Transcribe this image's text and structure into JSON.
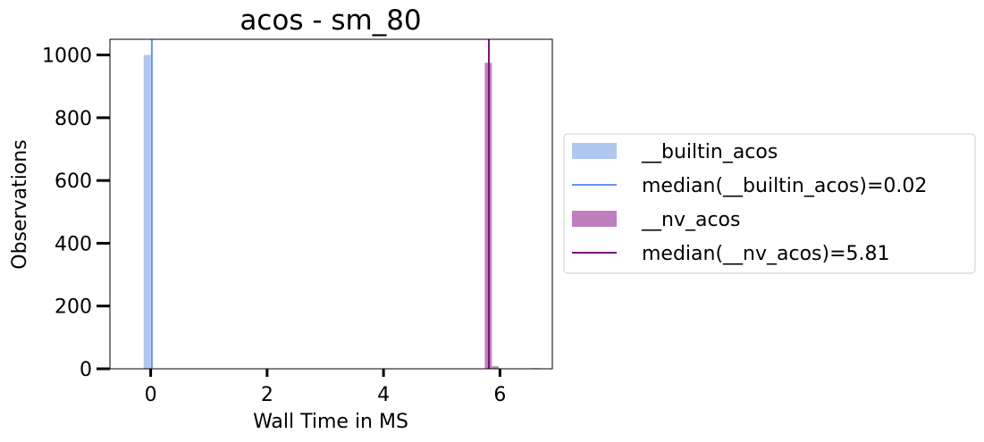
{
  "chart_data": {
    "type": "bar",
    "title": "acos - sm_80",
    "xlabel": "Wall Time in MS",
    "ylabel": "Observations",
    "xlim": [
      -0.7,
      6.9
    ],
    "ylim": [
      0,
      1050
    ],
    "xticks": [
      0,
      2,
      4,
      6
    ],
    "yticks": [
      0,
      200,
      400,
      600,
      800,
      1000
    ],
    "legend_position": "right-outside",
    "grid": false,
    "series": [
      {
        "name": "__builtin_acos",
        "kind": "histogram",
        "color": "#b0c8f0",
        "bins": [
          {
            "x0": -0.12,
            "x1": 0.0,
            "count": 1000
          }
        ]
      },
      {
        "name": "median(__builtin_acos)=0.02",
        "kind": "vline",
        "color": "#6495ed",
        "x": 0.02
      },
      {
        "name": "__nv_acos",
        "kind": "histogram",
        "color": "#bf7fbf",
        "bins": [
          {
            "x0": 5.74,
            "x1": 5.86,
            "count": 975
          },
          {
            "x0": 5.86,
            "x1": 5.98,
            "count": 8
          },
          {
            "x0": 6.43,
            "x1": 6.55,
            "count": 1
          },
          {
            "x0": 6.55,
            "x1": 6.67,
            "count": 2
          }
        ]
      },
      {
        "name": "median(__nv_acos)=5.81",
        "kind": "vline",
        "color": "#7b127b",
        "x": 5.81
      }
    ]
  }
}
